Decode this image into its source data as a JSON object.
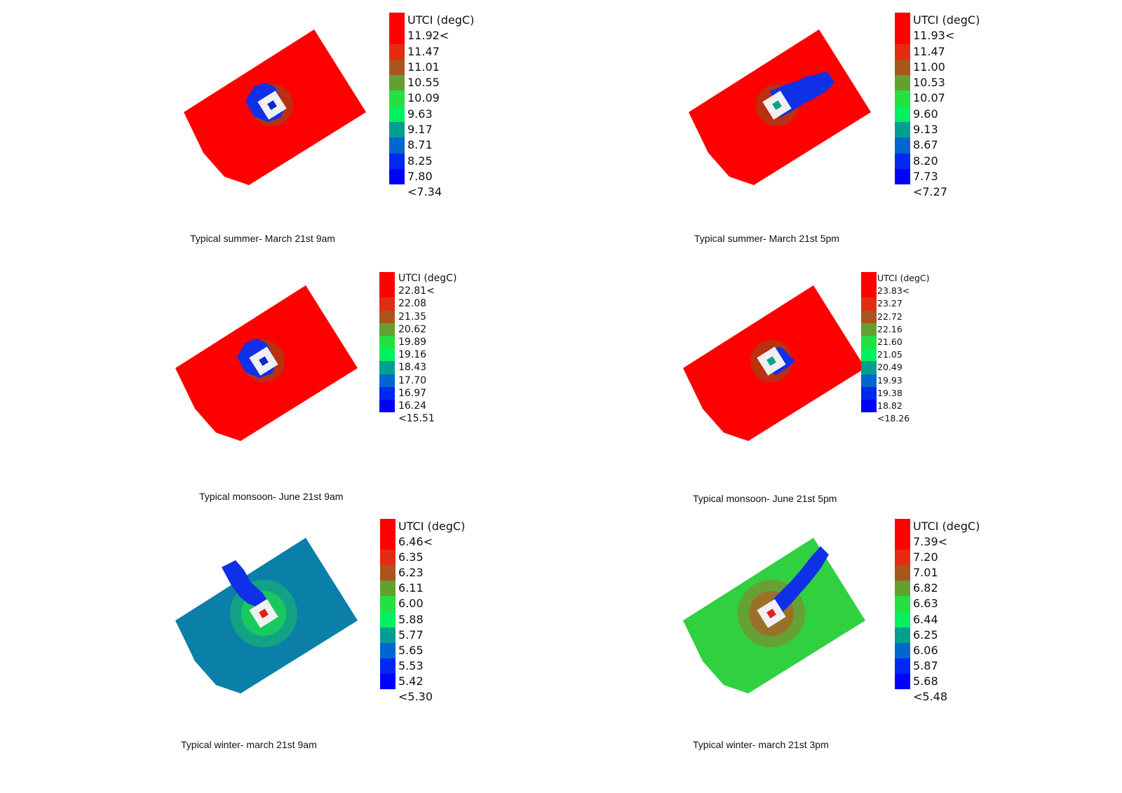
{
  "palette": [
    "#ff0000",
    "#e42c10",
    "#aa5420",
    "#64a030",
    "#24e040",
    "#00f060",
    "#00a090",
    "#0066d0",
    "#0028f0",
    "#0000ff"
  ],
  "panels": [
    {
      "caption": "Typical summer- March 21st 9am",
      "legend": {
        "title": "UTCI (degC)",
        "labels": [
          "11.92<",
          "11.47",
          "11.01",
          "10.55",
          "10.09",
          "9.63",
          "9.17",
          "8.71",
          "8.25",
          "7.80",
          "<7.34"
        ]
      },
      "map": {
        "ground_color": "#ff0000",
        "shadow_color": "#1030e8",
        "core_color": "#0a28c8",
        "ring_color": "#f0f0f0",
        "shadow": "compact-northwest"
      }
    },
    {
      "caption": "Typical summer- March 21st 5pm",
      "legend": {
        "title": "UTCI (degC)",
        "labels": [
          "11.93<",
          "11.47",
          "11.00",
          "10.53",
          "10.07",
          "9.60",
          "9.13",
          "8.67",
          "8.20",
          "7.73",
          "<7.27"
        ]
      },
      "map": {
        "ground_color": "#ff0000",
        "shadow_color": "#1030e8",
        "core_color": "#10a080",
        "ring_color": "#f0f0f0",
        "shadow": "long-east"
      }
    },
    {
      "caption": "Typical monsoon- June 21st 9am",
      "legend": {
        "title": "UTCI (degC)",
        "labels": [
          "22.81<",
          "22.08",
          "21.35",
          "20.62",
          "19.89",
          "19.16",
          "18.43",
          "17.70",
          "16.97",
          "16.24",
          "<15.51"
        ]
      },
      "map": {
        "ground_color": "#ff0000",
        "shadow_color": "#1030e8",
        "core_color": "#0a28c8",
        "ring_color": "#f0f0f0",
        "shadow": "compact-northwest"
      }
    },
    {
      "caption": "Typical monsoon- June 21st 5pm",
      "legend": {
        "title": "UTCI (degC)",
        "labels": [
          "23.83<",
          "23.27",
          "22.72",
          "22.16",
          "21.60",
          "21.05",
          "20.49",
          "19.93",
          "19.38",
          "18.82",
          "<18.26"
        ]
      },
      "map": {
        "ground_color": "#ff0000",
        "shadow_color": "#1030e8",
        "core_color": "#10a080",
        "ring_color": "#f0f0f0",
        "shadow": "short-east"
      }
    },
    {
      "caption": "Typical winter- march 21st 9am",
      "legend": {
        "title": "UTCI (degC)",
        "labels": [
          "6.46<",
          "6.35",
          "6.23",
          "6.11",
          "6.00",
          "5.88",
          "5.77",
          "5.65",
          "5.53",
          "5.42",
          "<5.30"
        ]
      },
      "map": {
        "ground_color": "#0a7fa8",
        "shadow_color": "#1030e8",
        "core_color": "#e02020",
        "ring_color": "#f0f0f0",
        "shadow": "north",
        "glow_color": "#20e840"
      }
    },
    {
      "caption": "Typical winter- march 21st 3pm",
      "legend": {
        "title": "UTCI (degC)",
        "labels": [
          "7.39<",
          "7.20",
          "7.01",
          "6.82",
          "6.63",
          "6.44",
          "6.25",
          "6.06",
          "5.87",
          "5.68",
          "<5.48"
        ]
      },
      "map": {
        "ground_color": "#30d040",
        "shadow_color": "#1030e8",
        "core_color": "#e02020",
        "ring_color": "#f0f0f0",
        "shadow": "long-northeast",
        "glow_color": "#c84a20"
      }
    }
  ]
}
